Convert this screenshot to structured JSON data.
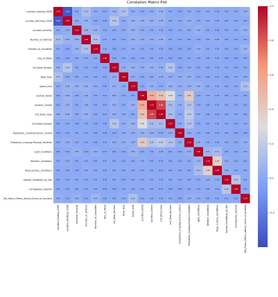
{
  "chart_data": {
    "type": "heatmap",
    "title": "Correlation Matrix Plot",
    "xlabel": "",
    "ylabel": "",
    "labels": [
      "Location_Easting_OSGR",
      "Location_Northing_OSGR",
      "Accident_Severity",
      "Number_of_Vehicles",
      "Number_of_Casualties",
      "Day_of_Week",
      "1st_Road_Number",
      "Road_Type",
      "Speed_limit",
      "Junction_Detail",
      "Junction_Control",
      "2nd_Road_Class",
      "2nd_Road_Number",
      "Pedestrian_Crossing-Human_Control",
      "Pedestrian_Crossing-Physical_Facilities",
      "Light_Conditions",
      "Weather_Conditions",
      "Road_Surface_Conditions",
      "Special_Conditions_at_Site",
      "Carriageway_Hazards",
      "Did_Police_Officer_Attend_Scene_of_Accident"
    ],
    "values": [
      [
        1.0,
        -0.35,
        0.01,
        0.12,
        0.03,
        0.01,
        0.06,
        0.13,
        0.03,
        0.02,
        0.03,
        0.06,
        0.01,
        0.0,
        0.03,
        0.01,
        0.03,
        0.01,
        0.01,
        0.01,
        0.04
      ],
      [
        -0.35,
        1.0,
        0.03,
        0.06,
        0.0,
        0.0,
        0.16,
        0.02,
        0.06,
        0.06,
        0.05,
        0.06,
        0.01,
        0.01,
        0.04,
        0.02,
        0.03,
        0.02,
        0.01,
        0.01,
        0.01
      ],
      [
        0.01,
        0.03,
        1.0,
        0.06,
        0.05,
        0.01,
        0.01,
        0.02,
        0.05,
        0.02,
        0.01,
        0.02,
        0.0,
        0.01,
        0.02,
        0.05,
        0.01,
        0.0,
        0.01,
        0.01,
        0.05
      ],
      [
        0.12,
        0.06,
        0.06,
        1.0,
        0.13,
        0.01,
        0.01,
        0.01,
        0.05,
        0.04,
        0.04,
        0.05,
        0.01,
        0.01,
        0.01,
        0.01,
        0.03,
        0.03,
        0.01,
        0.01,
        0.01
      ],
      [
        0.03,
        0.0,
        0.05,
        0.13,
        1.0,
        0.01,
        0.0,
        0.01,
        0.03,
        0.01,
        0.01,
        0.02,
        0.0,
        0.0,
        0.0,
        0.04,
        0.01,
        0.02,
        0.01,
        0.01,
        0.07
      ],
      [
        0.01,
        0.0,
        0.01,
        0.01,
        0.01,
        1.0,
        0.0,
        0.01,
        0.0,
        0.01,
        0.01,
        0.01,
        0.0,
        0.0,
        0.01,
        0.01,
        0.01,
        0.01,
        0.0,
        0.0,
        0.01
      ],
      [
        0.06,
        0.16,
        0.01,
        0.01,
        0.0,
        0.0,
        1.0,
        0.04,
        0.05,
        0.04,
        0.05,
        0.04,
        0.16,
        0.0,
        0.03,
        0.01,
        0.01,
        0.01,
        0.01,
        0.0,
        0.01
      ],
      [
        0.13,
        0.02,
        0.02,
        0.01,
        0.01,
        0.01,
        0.04,
        1.0,
        0.03,
        0.01,
        0.02,
        0.03,
        0.03,
        0.03,
        0.04,
        0.01,
        0.01,
        0.01,
        0.0,
        0.01,
        0.03
      ],
      [
        0.03,
        0.06,
        0.05,
        0.05,
        0.03,
        0.0,
        0.05,
        0.03,
        1.0,
        0.01,
        0.05,
        0.01,
        0.06,
        0.03,
        0.04,
        0.06,
        0.01,
        0.02,
        0.01,
        0.02,
        0.13
      ],
      [
        0.02,
        0.06,
        0.02,
        0.04,
        0.01,
        0.01,
        0.04,
        0.01,
        0.01,
        1.0,
        0.54,
        0.44,
        0.3,
        0.05,
        0.41,
        0.01,
        0.03,
        0.01,
        0.01,
        0.01,
        0.01
      ],
      [
        0.03,
        0.05,
        0.01,
        0.04,
        0.01,
        0.01,
        0.05,
        0.02,
        0.05,
        0.54,
        1.0,
        0.85,
        0.11,
        0.04,
        0.15,
        0.02,
        0.01,
        0.01,
        0.02,
        0.01,
        0.01
      ],
      [
        0.06,
        0.06,
        0.02,
        0.05,
        0.02,
        0.01,
        0.04,
        0.03,
        0.01,
        0.44,
        0.85,
        1.0,
        0.11,
        0.01,
        0.19,
        0.03,
        0.01,
        0.01,
        0.01,
        0.01,
        0.01
      ],
      [
        0.01,
        0.01,
        0.0,
        0.01,
        0.0,
        0.0,
        0.16,
        0.03,
        0.06,
        0.3,
        0.11,
        0.11,
        1.0,
        0.03,
        0.14,
        0.01,
        0.01,
        0.02,
        0.01,
        0.0,
        0.03
      ],
      [
        0.0,
        0.01,
        0.01,
        0.01,
        0.0,
        0.0,
        0.0,
        0.03,
        0.03,
        0.05,
        0.04,
        0.01,
        0.03,
        1.0,
        0.03,
        0.01,
        0.01,
        0.01,
        0.01,
        0.0,
        0.0
      ],
      [
        0.03,
        0.04,
        0.02,
        0.01,
        0.0,
        0.01,
        0.03,
        0.04,
        0.04,
        0.41,
        0.15,
        0.19,
        0.14,
        0.03,
        1.0,
        0.04,
        0.02,
        0.01,
        0.02,
        0.01,
        0.04
      ],
      [
        0.01,
        0.02,
        0.05,
        0.01,
        0.04,
        0.01,
        0.01,
        0.01,
        0.06,
        0.01,
        0.02,
        0.03,
        0.01,
        0.01,
        0.04,
        1.0,
        0.07,
        0.11,
        0.01,
        0.01,
        0.03
      ],
      [
        0.03,
        0.03,
        0.01,
        0.03,
        0.01,
        0.01,
        0.01,
        0.01,
        0.01,
        0.03,
        0.01,
        0.01,
        0.01,
        0.01,
        0.02,
        0.07,
        1.0,
        0.36,
        0.03,
        0.01,
        0.01
      ],
      [
        0.01,
        0.02,
        0.0,
        0.03,
        0.02,
        0.01,
        0.01,
        0.01,
        0.02,
        0.01,
        0.01,
        0.01,
        0.02,
        0.01,
        0.01,
        0.11,
        0.36,
        1.0,
        0.03,
        0.01,
        0.01
      ],
      [
        0.01,
        0.01,
        0.01,
        0.01,
        0.01,
        0.0,
        0.01,
        0.0,
        0.01,
        0.01,
        0.02,
        0.01,
        0.01,
        0.01,
        0.02,
        0.01,
        0.03,
        0.03,
        1.0,
        0.16,
        0.01
      ],
      [
        0.01,
        0.01,
        0.01,
        0.01,
        0.01,
        0.0,
        0.0,
        0.01,
        0.02,
        0.01,
        0.01,
        0.01,
        0.0,
        0.0,
        0.01,
        0.01,
        0.01,
        0.01,
        0.16,
        1.0,
        0.01
      ],
      [
        0.04,
        0.01,
        0.05,
        0.01,
        0.07,
        0.01,
        0.01,
        0.03,
        0.13,
        0.01,
        0.01,
        0.01,
        0.03,
        0.0,
        0.04,
        0.03,
        0.01,
        0.01,
        0.01,
        0.01,
        1.0
      ]
    ],
    "zlim": [
      -0.4,
      1.0
    ],
    "colorbar_ticks": [
      1.0,
      0.8,
      0.6,
      0.4,
      0.2,
      0.0,
      -0.2
    ],
    "colormap": "coolwarm",
    "colors": {
      "low": "#3b4cc0",
      "mid": "#dddddd",
      "high": "#b40426"
    },
    "grid": false,
    "colorbar": "right"
  }
}
